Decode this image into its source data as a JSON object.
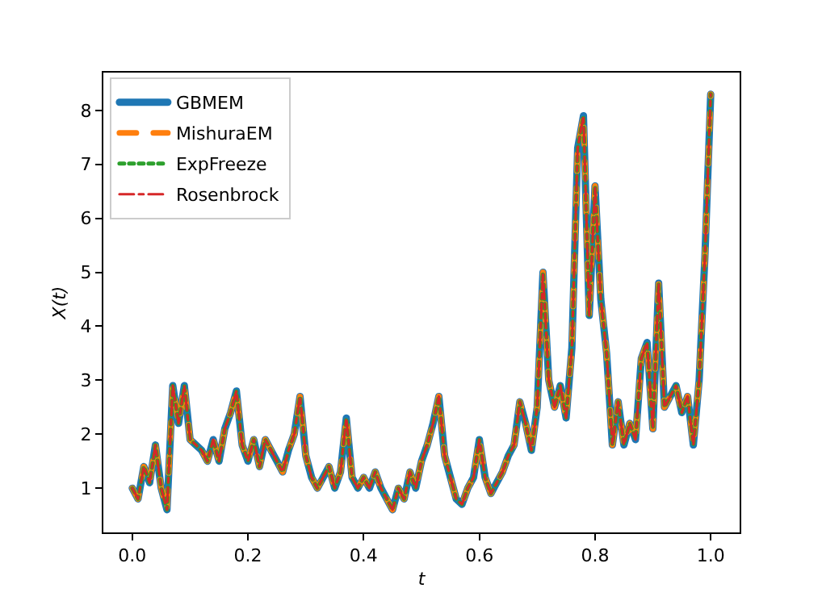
{
  "chart_data": {
    "type": "line",
    "xlabel": "t",
    "ylabel": "X(t)",
    "xlim": [
      -0.05,
      1.05
    ],
    "ylim": [
      0.18,
      8.7
    ],
    "xticks": [
      {
        "value": 0.0,
        "label": "0.0"
      },
      {
        "value": 0.2,
        "label": "0.2"
      },
      {
        "value": 0.4,
        "label": "0.4"
      },
      {
        "value": 0.6,
        "label": "0.6"
      },
      {
        "value": 0.8,
        "label": "0.8"
      },
      {
        "value": 1.0,
        "label": "1.0"
      }
    ],
    "yticks": [
      1,
      2,
      3,
      4,
      5,
      6,
      7,
      8
    ],
    "grid": false,
    "legend": "top left",
    "marker": "none",
    "x": [
      0.0,
      0.01,
      0.02,
      0.03,
      0.04,
      0.05,
      0.06,
      0.07,
      0.08,
      0.09,
      0.1,
      0.11,
      0.12,
      0.13,
      0.14,
      0.15,
      0.16,
      0.17,
      0.18,
      0.19,
      0.2,
      0.21,
      0.22,
      0.23,
      0.24,
      0.25,
      0.26,
      0.27,
      0.28,
      0.29,
      0.3,
      0.31,
      0.32,
      0.33,
      0.34,
      0.35,
      0.36,
      0.37,
      0.38,
      0.39,
      0.4,
      0.41,
      0.42,
      0.43,
      0.44,
      0.45,
      0.46,
      0.47,
      0.48,
      0.49,
      0.5,
      0.51,
      0.52,
      0.53,
      0.54,
      0.55,
      0.56,
      0.57,
      0.58,
      0.59,
      0.6,
      0.61,
      0.62,
      0.63,
      0.64,
      0.65,
      0.66,
      0.67,
      0.68,
      0.69,
      0.7,
      0.71,
      0.72,
      0.73,
      0.74,
      0.75,
      0.76,
      0.77,
      0.78,
      0.79,
      0.8,
      0.81,
      0.82,
      0.83,
      0.84,
      0.85,
      0.86,
      0.87,
      0.88,
      0.89,
      0.9,
      0.91,
      0.92,
      0.93,
      0.94,
      0.95,
      0.96,
      0.97,
      0.98,
      0.99,
      1.0
    ],
    "series": [
      {
        "name": "GBMEM",
        "color": "#1f77b4",
        "line_style": "solid",
        "values": [
          1.0,
          0.8,
          1.4,
          1.1,
          1.8,
          1.0,
          0.6,
          2.9,
          2.2,
          2.9,
          1.9,
          1.8,
          1.7,
          1.5,
          1.9,
          1.5,
          2.1,
          2.4,
          2.8,
          1.8,
          1.5,
          1.9,
          1.4,
          1.9,
          1.7,
          1.5,
          1.3,
          1.7,
          2.0,
          2.7,
          1.6,
          1.2,
          1.0,
          1.2,
          1.4,
          1.0,
          1.3,
          2.3,
          1.2,
          1.0,
          1.2,
          1.0,
          1.3,
          1.0,
          0.8,
          0.6,
          1.0,
          0.8,
          1.3,
          1.0,
          1.5,
          1.8,
          2.2,
          2.7,
          1.6,
          1.2,
          0.8,
          0.7,
          1.0,
          1.2,
          1.9,
          1.2,
          0.9,
          1.1,
          1.3,
          1.6,
          1.8,
          2.6,
          2.2,
          1.7,
          2.5,
          5.0,
          3.0,
          2.5,
          2.9,
          2.3,
          3.6,
          7.3,
          7.9,
          4.2,
          6.6,
          4.5,
          3.5,
          1.8,
          2.6,
          1.8,
          2.2,
          1.9,
          3.4,
          3.7,
          2.1,
          4.8,
          2.5,
          2.7,
          2.9,
          2.4,
          2.7,
          1.8,
          3.0,
          5.3,
          8.3
        ]
      },
      {
        "name": "MishuraEM",
        "color": "#ff7f0e",
        "line_style": "dashed",
        "values": [
          1.0,
          0.8,
          1.4,
          1.1,
          1.8,
          1.0,
          0.6,
          2.9,
          2.2,
          2.9,
          1.9,
          1.8,
          1.7,
          1.5,
          1.9,
          1.5,
          2.1,
          2.4,
          2.8,
          1.8,
          1.5,
          1.9,
          1.4,
          1.9,
          1.7,
          1.5,
          1.3,
          1.7,
          2.0,
          2.7,
          1.6,
          1.2,
          1.0,
          1.2,
          1.4,
          1.0,
          1.3,
          2.3,
          1.2,
          1.0,
          1.2,
          1.0,
          1.3,
          1.0,
          0.8,
          0.6,
          1.0,
          0.8,
          1.3,
          1.0,
          1.5,
          1.8,
          2.2,
          2.7,
          1.6,
          1.2,
          0.8,
          0.7,
          1.0,
          1.2,
          1.9,
          1.2,
          0.9,
          1.1,
          1.3,
          1.6,
          1.8,
          2.6,
          2.2,
          1.7,
          2.5,
          5.0,
          3.0,
          2.5,
          2.9,
          2.3,
          3.6,
          7.3,
          7.9,
          4.2,
          6.6,
          4.5,
          3.5,
          1.8,
          2.6,
          1.8,
          2.2,
          1.9,
          3.4,
          3.7,
          2.1,
          4.8,
          2.5,
          2.7,
          2.9,
          2.4,
          2.7,
          1.8,
          3.0,
          5.3,
          8.3
        ]
      },
      {
        "name": "ExpFreeze",
        "color": "#2ca02c",
        "line_style": "dotted",
        "values": [
          1.0,
          0.8,
          1.4,
          1.1,
          1.8,
          1.0,
          0.6,
          2.9,
          2.2,
          2.9,
          1.9,
          1.8,
          1.7,
          1.5,
          1.9,
          1.5,
          2.1,
          2.4,
          2.8,
          1.8,
          1.5,
          1.9,
          1.4,
          1.9,
          1.7,
          1.5,
          1.3,
          1.7,
          2.0,
          2.7,
          1.6,
          1.2,
          1.0,
          1.2,
          1.4,
          1.0,
          1.3,
          2.3,
          1.2,
          1.0,
          1.2,
          1.0,
          1.3,
          1.0,
          0.8,
          0.6,
          1.0,
          0.8,
          1.3,
          1.0,
          1.5,
          1.8,
          2.2,
          2.7,
          1.6,
          1.2,
          0.8,
          0.7,
          1.0,
          1.2,
          1.9,
          1.2,
          0.9,
          1.1,
          1.3,
          1.6,
          1.8,
          2.6,
          2.2,
          1.7,
          2.5,
          5.0,
          3.0,
          2.5,
          2.9,
          2.3,
          3.6,
          7.3,
          7.9,
          4.2,
          6.6,
          4.5,
          3.5,
          1.8,
          2.6,
          1.8,
          2.2,
          1.9,
          3.4,
          3.7,
          2.1,
          4.8,
          2.5,
          2.7,
          2.9,
          2.4,
          2.7,
          1.8,
          3.0,
          5.3,
          8.3
        ]
      },
      {
        "name": "Rosenbrock",
        "color": "#d62728",
        "line_style": "dashdot",
        "values": [
          1.0,
          0.8,
          1.4,
          1.1,
          1.8,
          1.0,
          0.6,
          2.9,
          2.2,
          2.9,
          1.9,
          1.8,
          1.7,
          1.5,
          1.9,
          1.5,
          2.1,
          2.4,
          2.8,
          1.8,
          1.5,
          1.9,
          1.4,
          1.9,
          1.7,
          1.5,
          1.3,
          1.7,
          2.0,
          2.7,
          1.6,
          1.2,
          1.0,
          1.2,
          1.4,
          1.0,
          1.3,
          2.3,
          1.2,
          1.0,
          1.2,
          1.0,
          1.3,
          1.0,
          0.8,
          0.6,
          1.0,
          0.8,
          1.3,
          1.0,
          1.5,
          1.8,
          2.2,
          2.7,
          1.6,
          1.2,
          0.8,
          0.7,
          1.0,
          1.2,
          1.9,
          1.2,
          0.9,
          1.1,
          1.3,
          1.6,
          1.8,
          2.6,
          2.2,
          1.7,
          2.5,
          5.0,
          3.0,
          2.5,
          2.9,
          2.3,
          3.6,
          7.3,
          7.9,
          4.2,
          6.6,
          4.5,
          3.5,
          1.8,
          2.6,
          1.8,
          2.2,
          1.9,
          3.4,
          3.7,
          2.1,
          4.8,
          2.5,
          2.7,
          2.9,
          2.4,
          2.7,
          1.8,
          3.0,
          5.3,
          8.3
        ]
      }
    ]
  }
}
